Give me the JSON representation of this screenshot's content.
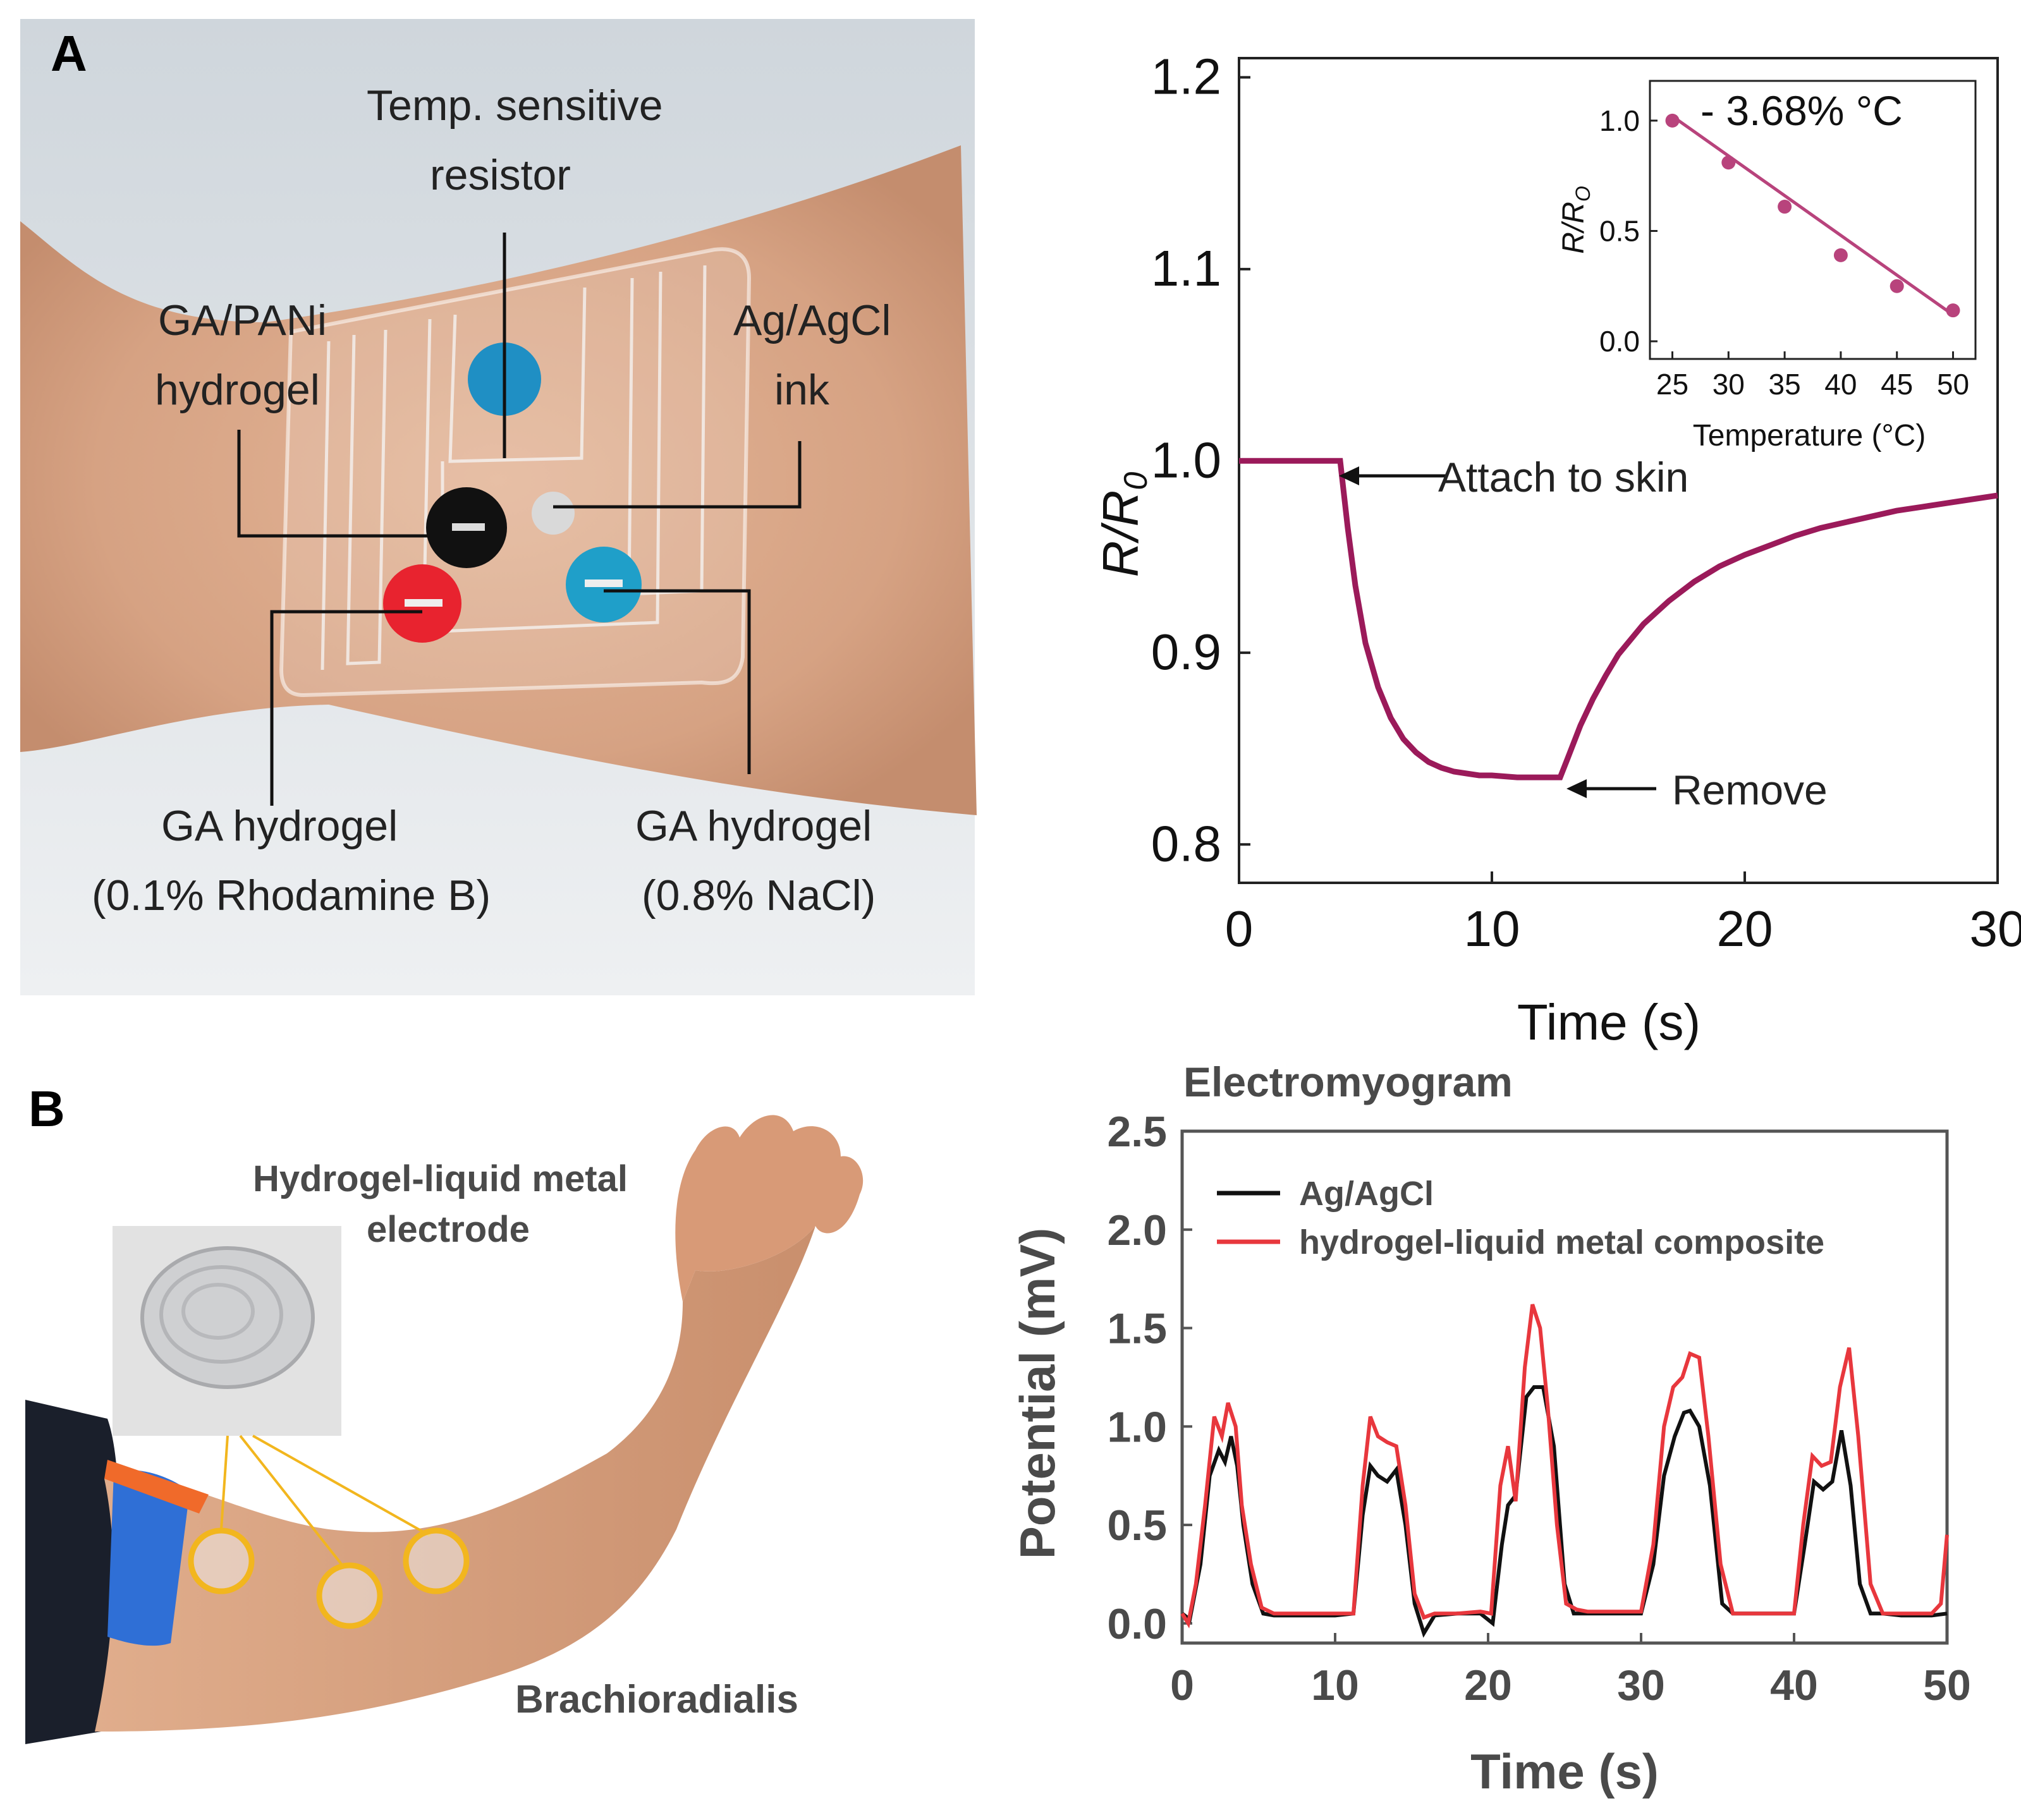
{
  "panel_a": {
    "letter": "A",
    "photo_labels": {
      "temp_resistor": [
        "Temp. sensitive",
        "resistor"
      ],
      "ga_pani": [
        "GA/PANi",
        "hydrogel"
      ],
      "ag_agcl_ink": [
        "Ag/AgCl",
        "ink"
      ],
      "ga_rhodamine": [
        "GA hydrogel",
        "(0.1% Rhodamine B)"
      ],
      "ga_nacl": [
        "GA hydrogel",
        "(0.8% NaCl)"
      ]
    },
    "dot_colors": {
      "blue": "#1f8fc4",
      "black": "#111111",
      "red": "#e8232f",
      "silver": "#d9d9d9",
      "skin": "#d9a98a",
      "background": "#dfe3e6"
    }
  },
  "panel_b": {
    "letter": "B",
    "photo_labels": {
      "electrode": [
        "Hydrogel-liquid metal",
        "electrode"
      ],
      "muscle": "Brachioradialis"
    },
    "colors": {
      "ring": "#f2b61e",
      "skin": "#d9a381",
      "sleeve": "#1a1f2b",
      "strap": "#2f6fd6"
    }
  },
  "chart_data": [
    {
      "id": "resistance-chart",
      "type": "line",
      "xlabel": "Time (s)",
      "ylabel_main": "R/R",
      "ylabel_sub": "0",
      "xlim": [
        0,
        30
      ],
      "ylim": [
        0.78,
        1.21
      ],
      "xticks": [
        0,
        10,
        20,
        30
      ],
      "yticks": [
        "0.8",
        "0.9",
        "1.0",
        "1.1",
        "1.2"
      ],
      "ytick_values": [
        0.8,
        0.9,
        1.0,
        1.1,
        1.2
      ],
      "line_color": "#9b1a5a",
      "series": [
        {
          "x": [
            0,
            1,
            2,
            3,
            4,
            4.3,
            4.6,
            5,
            5.5,
            6,
            6.5,
            7,
            7.5,
            8,
            8.5,
            9,
            9.5,
            10,
            11,
            12,
            12.7,
            13,
            13.5,
            14,
            14.5,
            15,
            16,
            17,
            18,
            19,
            20,
            21,
            22,
            23,
            24,
            25,
            26,
            27,
            28,
            29,
            30
          ],
          "y": [
            1.0,
            1.0,
            1.0,
            1.0,
            1.0,
            0.965,
            0.935,
            0.905,
            0.882,
            0.866,
            0.855,
            0.848,
            0.843,
            0.84,
            0.838,
            0.837,
            0.836,
            0.836,
            0.835,
            0.835,
            0.835,
            0.845,
            0.862,
            0.876,
            0.888,
            0.899,
            0.915,
            0.927,
            0.937,
            0.945,
            0.951,
            0.956,
            0.961,
            0.965,
            0.968,
            0.971,
            0.974,
            0.976,
            0.978,
            0.98,
            0.982
          ]
        }
      ],
      "annotations": [
        {
          "text": "Attach to skin",
          "x": 4,
          "y": 1.0
        },
        {
          "text": "Remove",
          "x": 12.7,
          "y": 0.835
        }
      ],
      "inset": {
        "type": "scatter",
        "xlabel": "Temperature (°C)",
        "ylabel_main": "R/R",
        "ylabel_sub": "O",
        "xlim": [
          23,
          52
        ],
        "ylim": [
          -0.08,
          1.18
        ],
        "xticks": [
          25,
          30,
          35,
          40,
          45,
          50
        ],
        "yticks": [
          "0.0",
          "0.5",
          "1.0"
        ],
        "ytick_values": [
          0.0,
          0.5,
          1.0
        ],
        "annotation": "- 3.68% °C",
        "color": "#b8437c",
        "points": {
          "x": [
            25,
            30,
            35,
            40,
            45,
            50
          ],
          "y": [
            1.0,
            0.81,
            0.61,
            0.39,
            0.25,
            0.14
          ]
        },
        "fit": {
          "x": [
            25,
            50
          ],
          "y": [
            1.02,
            0.12
          ]
        }
      }
    },
    {
      "id": "emg-chart",
      "type": "line",
      "title": "Electromyogram",
      "xlabel": "Time (s)",
      "ylabel": "Potential (mV)",
      "xlim": [
        0,
        50
      ],
      "ylim": [
        -0.1,
        2.5
      ],
      "xticks": [
        0,
        10,
        20,
        30,
        40,
        50
      ],
      "yticks": [
        "0.0",
        "0.5",
        "1.0",
        "1.5",
        "2.0",
        "2.5"
      ],
      "ytick_values": [
        0.0,
        0.5,
        1.0,
        1.5,
        2.0,
        2.5
      ],
      "legend": "top-left",
      "series": [
        {
          "name": "Ag/AgCl",
          "color": "#111111",
          "x": [
            0,
            0.5,
            1.2,
            1.8,
            2.4,
            2.8,
            3.2,
            3.6,
            4.0,
            4.6,
            5.3,
            6,
            8,
            10,
            11.2,
            11.8,
            12.3,
            12.8,
            13.4,
            14,
            14.6,
            15.2,
            15.8,
            16.5,
            18,
            19.5,
            20.3,
            20.9,
            21.3,
            21.8,
            22.5,
            23.0,
            23.6,
            24.3,
            25.0,
            25.6,
            26.4,
            28,
            30,
            30.8,
            31.5,
            32.2,
            32.8,
            33.2,
            33.8,
            34.5,
            35.3,
            36,
            38,
            40,
            40.7,
            41.3,
            41.9,
            42.5,
            43.1,
            43.7,
            44.3,
            45,
            45.8,
            47,
            49,
            50
          ],
          "y": [
            0.05,
            0.02,
            0.3,
            0.75,
            0.88,
            0.82,
            0.95,
            0.8,
            0.5,
            0.2,
            0.05,
            0.04,
            0.04,
            0.04,
            0.05,
            0.55,
            0.8,
            0.75,
            0.72,
            0.78,
            0.5,
            0.1,
            -0.05,
            0.04,
            0.05,
            0.05,
            0.0,
            0.4,
            0.6,
            0.65,
            1.15,
            1.2,
            1.2,
            0.9,
            0.2,
            0.05,
            0.05,
            0.05,
            0.05,
            0.3,
            0.75,
            0.95,
            1.07,
            1.08,
            1.0,
            0.7,
            0.1,
            0.05,
            0.05,
            0.05,
            0.4,
            0.72,
            0.68,
            0.72,
            0.98,
            0.7,
            0.2,
            0.05,
            0.05,
            0.04,
            0.04,
            0.05
          ]
        },
        {
          "name": "hydrogel-liquid metal composite",
          "color": "#e8373d",
          "x": [
            0,
            0.4,
            0.9,
            1.5,
            2.1,
            2.6,
            3.0,
            3.5,
            3.9,
            4.5,
            5.2,
            6,
            8,
            10,
            11.2,
            11.8,
            12.3,
            12.8,
            13.4,
            14,
            14.6,
            15.2,
            15.8,
            16.5,
            18,
            19.5,
            20.2,
            20.8,
            21.3,
            21.8,
            22.4,
            22.9,
            23.4,
            23.9,
            24.5,
            25.1,
            25.8,
            26.5,
            28,
            30,
            30.8,
            31.5,
            32.1,
            32.7,
            33.2,
            33.8,
            34.4,
            35.2,
            36,
            38,
            40,
            40.6,
            41.2,
            41.8,
            42.4,
            43.0,
            43.6,
            44.2,
            45,
            45.8,
            47,
            49,
            49.6,
            50
          ],
          "y": [
            0.05,
            0.0,
            0.2,
            0.6,
            1.05,
            0.95,
            1.12,
            1.0,
            0.6,
            0.3,
            0.08,
            0.05,
            0.05,
            0.05,
            0.05,
            0.7,
            1.05,
            0.95,
            0.92,
            0.9,
            0.6,
            0.15,
            0.03,
            0.05,
            0.05,
            0.06,
            0.05,
            0.7,
            0.9,
            0.62,
            1.3,
            1.62,
            1.5,
            1.1,
            0.5,
            0.1,
            0.07,
            0.06,
            0.06,
            0.06,
            0.4,
            1.0,
            1.2,
            1.25,
            1.37,
            1.35,
            0.95,
            0.3,
            0.05,
            0.05,
            0.05,
            0.5,
            0.85,
            0.8,
            0.82,
            1.2,
            1.4,
            0.95,
            0.2,
            0.05,
            0.05,
            0.05,
            0.1,
            0.45
          ]
        }
      ]
    }
  ]
}
